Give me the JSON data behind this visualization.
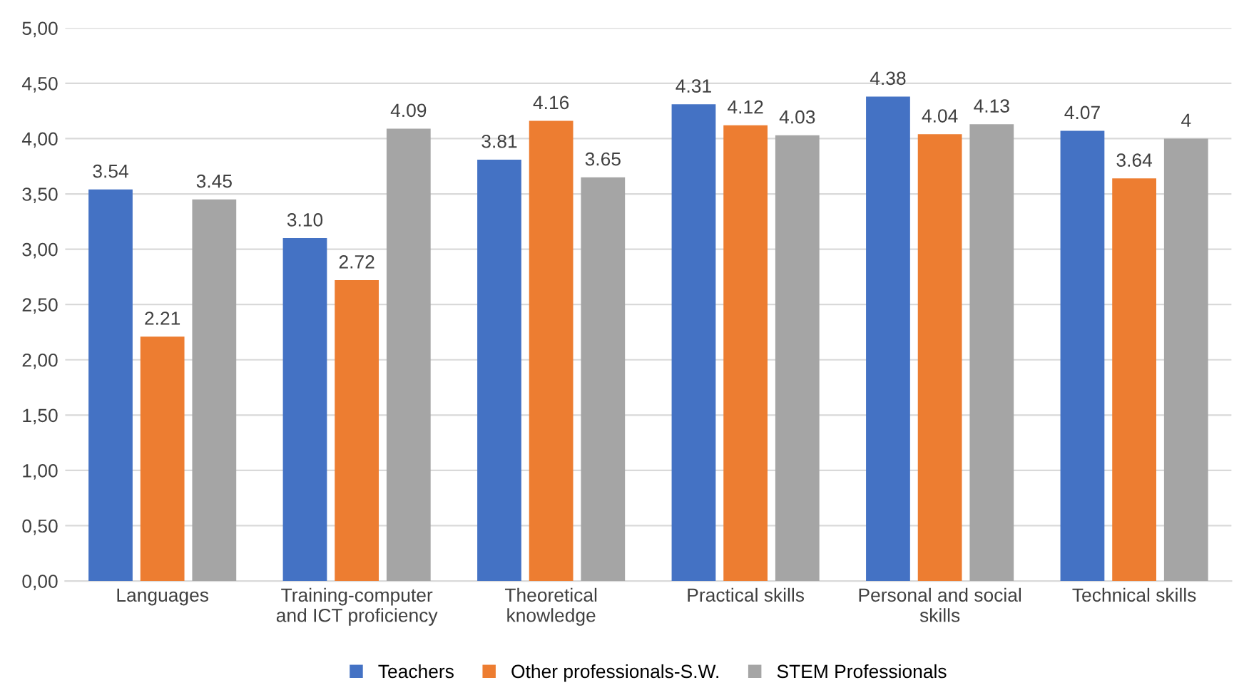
{
  "chart_data": {
    "type": "bar",
    "categories": [
      "Languages",
      "Training-computer\nand ICT proficiency",
      "Theoretical\nknowledge",
      "Practical skills",
      "Personal and social\nskills",
      "Technical skills"
    ],
    "series": [
      {
        "name": "Teachers",
        "color": "#4472c4",
        "values": [
          3.54,
          3.1,
          3.81,
          4.31,
          4.38,
          4.07
        ],
        "value_labels": [
          "3.54",
          "3.10",
          "3.81",
          "4.31",
          "4.38",
          "4.07"
        ]
      },
      {
        "name": "Other professionals-S.W.",
        "color": "#ed7d31",
        "values": [
          2.21,
          2.72,
          4.16,
          4.12,
          4.04,
          3.64
        ],
        "value_labels": [
          "2.21",
          "2.72",
          "4.16",
          "4.12",
          "4.04",
          "3.64"
        ]
      },
      {
        "name": "STEM Professionals",
        "color": "#a5a5a5",
        "values": [
          3.45,
          4.09,
          3.65,
          4.03,
          4.13,
          4
        ],
        "value_labels": [
          "3.45",
          "4.09",
          "3.65",
          "4.03",
          "4.13",
          "4"
        ]
      }
    ],
    "ylim": [
      0,
      5
    ],
    "yticks": [
      {
        "value": 0,
        "label": "0,00"
      },
      {
        "value": 0.5,
        "label": "0,50"
      },
      {
        "value": 1,
        "label": "1,00"
      },
      {
        "value": 1.5,
        "label": "1,50"
      },
      {
        "value": 2,
        "label": "2,00"
      },
      {
        "value": 2.5,
        "label": "2,50"
      },
      {
        "value": 3,
        "label": "3,00"
      },
      {
        "value": 3.5,
        "label": "3,50"
      },
      {
        "value": 4,
        "label": "4,00"
      },
      {
        "value": 4.5,
        "label": "4,50"
      },
      {
        "value": 5,
        "label": "5,00"
      }
    ],
    "grid": "y",
    "legend": "bottom"
  }
}
